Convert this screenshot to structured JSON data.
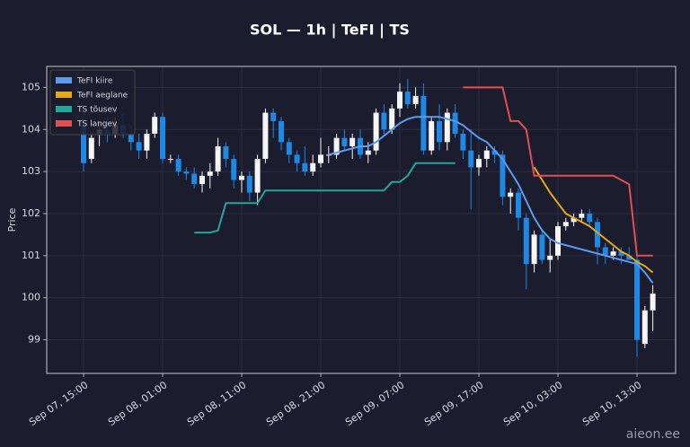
{
  "chart_data": {
    "type": "candlestick",
    "title": "SOL — 1h  |  TeFI  |  TS",
    "y_label": "Price",
    "watermark": "aieon.ee",
    "categories": [
      "Sep 07, 15:00",
      null,
      null,
      null,
      null,
      null,
      null,
      null,
      null,
      null,
      "Sep 08, 01:00",
      null,
      null,
      null,
      null,
      null,
      null,
      null,
      null,
      null,
      "Sep 08, 11:00",
      null,
      null,
      null,
      null,
      null,
      null,
      null,
      null,
      null,
      "Sep 08, 21:00",
      null,
      null,
      null,
      null,
      null,
      null,
      null,
      null,
      null,
      "Sep 09, 07:00",
      null,
      null,
      null,
      null,
      null,
      null,
      null,
      null,
      null,
      "Sep 09, 17:00",
      null,
      null,
      null,
      null,
      null,
      null,
      null,
      null,
      null,
      "Sep 10, 03:00",
      null,
      null,
      null,
      null,
      null,
      null,
      null,
      null,
      null,
      "Sep 10, 13:00",
      null,
      null
    ],
    "open": [
      104.1,
      103.3,
      103.9,
      104.0,
      103.9,
      104.1,
      103.9,
      103.7,
      103.5,
      103.9,
      104.3,
      103.3,
      103.3,
      103.0,
      102.95,
      102.7,
      102.9,
      103.0,
      103.6,
      103.3,
      102.8,
      102.9,
      102.5,
      103.3,
      104.4,
      104.2,
      103.7,
      103.4,
      103.2,
      103.0,
      103.2,
      103.4,
      103.4,
      103.8,
      103.6,
      103.8,
      103.4,
      103.5,
      104.4,
      104.0,
      104.5,
      104.9,
      104.6,
      104.8,
      103.5,
      104.2,
      103.7,
      104.4,
      103.9,
      103.5,
      103.1,
      103.3,
      103.5,
      103.4,
      102.4,
      102.5,
      101.9,
      100.8,
      101.5,
      100.9,
      101.0,
      101.7,
      101.8,
      101.9,
      102.0,
      101.8,
      101.2,
      101.0,
      101.1,
      101.0,
      100.9,
      98.9,
      99.7
    ],
    "high": [
      104.4,
      103.9,
      104.2,
      104.3,
      104.3,
      104.4,
      104.1,
      103.9,
      104.0,
      104.4,
      104.4,
      103.4,
      103.4,
      103.1,
      103.1,
      103.0,
      103.2,
      103.8,
      103.7,
      103.4,
      103.0,
      103.0,
      103.4,
      104.5,
      104.5,
      104.3,
      103.8,
      103.5,
      103.6,
      103.4,
      103.8,
      103.6,
      103.9,
      104.0,
      103.9,
      104.0,
      103.7,
      104.5,
      104.6,
      104.6,
      105.1,
      105.2,
      105.0,
      105.1,
      104.3,
      104.6,
      104.5,
      104.6,
      104.0,
      104.0,
      103.4,
      103.6,
      103.6,
      103.5,
      102.6,
      102.6,
      102.0,
      101.6,
      101.6,
      101.4,
      101.8,
      101.9,
      102.0,
      102.1,
      102.1,
      101.9,
      101.3,
      101.2,
      101.2,
      101.2,
      101.0,
      99.8,
      100.3
    ],
    "low": [
      103.0,
      103.2,
      103.6,
      103.7,
      103.8,
      103.8,
      103.5,
      103.3,
      103.3,
      103.8,
      103.2,
      103.2,
      102.9,
      102.8,
      102.6,
      102.5,
      102.6,
      102.9,
      103.1,
      102.6,
      102.5,
      102.3,
      102.2,
      103.2,
      103.8,
      103.5,
      103.2,
      103.0,
      102.9,
      102.9,
      103.1,
      103.2,
      103.3,
      103.5,
      103.3,
      103.3,
      103.2,
      103.4,
      103.9,
      103.9,
      104.3,
      104.5,
      104.5,
      103.4,
      103.4,
      103.5,
      103.5,
      103.8,
      103.3,
      102.1,
      102.9,
      103.1,
      103.2,
      102.2,
      102.0,
      101.6,
      100.2,
      100.6,
      100.8,
      100.6,
      100.9,
      101.6,
      101.7,
      101.8,
      101.7,
      100.8,
      100.8,
      100.9,
      100.8,
      100.9,
      98.6,
      98.8,
      99.2
    ],
    "close": [
      103.2,
      103.8,
      104.0,
      103.9,
      104.1,
      103.9,
      103.7,
      103.5,
      103.9,
      104.3,
      103.3,
      103.3,
      103.0,
      102.95,
      102.7,
      102.9,
      103.0,
      103.6,
      103.3,
      102.8,
      102.9,
      102.5,
      103.3,
      104.4,
      104.2,
      103.7,
      103.4,
      103.2,
      103.0,
      103.2,
      103.4,
      103.4,
      103.8,
      103.6,
      103.8,
      103.4,
      103.5,
      104.4,
      104.0,
      104.5,
      104.9,
      104.6,
      104.8,
      103.5,
      104.2,
      103.7,
      104.4,
      103.9,
      103.5,
      103.1,
      103.3,
      103.5,
      103.4,
      102.4,
      102.5,
      101.9,
      100.8,
      101.5,
      100.9,
      101.0,
      101.7,
      101.8,
      101.9,
      102.0,
      101.8,
      101.2,
      101.0,
      101.1,
      101.0,
      100.9,
      99.0,
      99.7,
      100.1
    ],
    "up_color": "#f5f5f5",
    "down_color": "#1e88e5",
    "series": [
      {
        "name": "TeFI kiire",
        "color": "#5b9bf0",
        "values": [
          null,
          null,
          null,
          null,
          null,
          null,
          null,
          null,
          null,
          null,
          null,
          null,
          null,
          null,
          null,
          null,
          null,
          null,
          null,
          null,
          null,
          null,
          null,
          null,
          null,
          null,
          null,
          null,
          null,
          null,
          null,
          103.4,
          103.45,
          103.5,
          103.55,
          103.6,
          103.6,
          103.7,
          103.85,
          104.0,
          104.15,
          104.25,
          104.3,
          104.3,
          104.3,
          104.3,
          104.25,
          104.2,
          104.1,
          103.95,
          103.8,
          103.7,
          103.5,
          103.3,
          103.0,
          102.7,
          102.3,
          101.9,
          101.6,
          101.4,
          101.3,
          101.25,
          101.2,
          101.15,
          101.1,
          101.05,
          101.0,
          100.95,
          100.9,
          100.85,
          100.8,
          100.6,
          100.35
        ]
      },
      {
        "name": "TeFI aeglane",
        "color": "#e6a817",
        "values": [
          null,
          null,
          null,
          null,
          null,
          null,
          null,
          null,
          null,
          null,
          null,
          null,
          null,
          null,
          null,
          null,
          null,
          null,
          null,
          null,
          null,
          null,
          null,
          null,
          null,
          null,
          null,
          null,
          null,
          null,
          null,
          null,
          null,
          null,
          null,
          null,
          null,
          null,
          null,
          null,
          null,
          null,
          null,
          null,
          null,
          null,
          null,
          null,
          null,
          null,
          null,
          null,
          null,
          null,
          null,
          null,
          null,
          103.1,
          102.8,
          102.5,
          102.25,
          102.0,
          101.9,
          101.8,
          101.7,
          101.55,
          101.4,
          101.25,
          101.1,
          101.0,
          100.85,
          100.75,
          100.6
        ]
      },
      {
        "name": "TS tõusev",
        "color": "#26a69a",
        "values": [
          null,
          null,
          null,
          null,
          null,
          null,
          null,
          null,
          null,
          null,
          null,
          null,
          null,
          null,
          101.55,
          101.55,
          101.55,
          101.6,
          102.25,
          102.25,
          102.25,
          102.25,
          102.25,
          102.55,
          102.55,
          102.55,
          102.55,
          102.55,
          102.55,
          102.55,
          102.55,
          102.55,
          102.55,
          102.55,
          102.55,
          102.55,
          102.55,
          102.55,
          102.55,
          102.75,
          102.75,
          102.9,
          103.2,
          103.2,
          103.2,
          103.2,
          103.2,
          103.2,
          null,
          null,
          null,
          null,
          null,
          null,
          null,
          null,
          null,
          null,
          null,
          null,
          null,
          null,
          null,
          null,
          null,
          null,
          null,
          null,
          null,
          null,
          null,
          null,
          null
        ]
      },
      {
        "name": "TS langev",
        "color": "#e05050",
        "values": [
          null,
          null,
          null,
          null,
          null,
          null,
          null,
          null,
          null,
          null,
          null,
          null,
          null,
          null,
          null,
          null,
          null,
          null,
          null,
          null,
          null,
          null,
          null,
          null,
          null,
          null,
          null,
          null,
          null,
          null,
          null,
          null,
          null,
          null,
          null,
          null,
          null,
          null,
          null,
          null,
          null,
          null,
          null,
          null,
          null,
          null,
          null,
          null,
          105.0,
          105.0,
          105.0,
          105.0,
          105.0,
          105.0,
          104.2,
          104.2,
          104.0,
          102.9,
          102.9,
          102.9,
          102.9,
          102.9,
          102.9,
          102.9,
          102.9,
          102.9,
          102.9,
          102.9,
          102.8,
          102.7,
          101.0,
          101.0,
          101.0
        ]
      }
    ],
    "ylim": [
      98.2,
      105.5
    ],
    "yticks": [
      99,
      100,
      101,
      102,
      103,
      104,
      105
    ],
    "grid": true,
    "legend": "upper left"
  }
}
